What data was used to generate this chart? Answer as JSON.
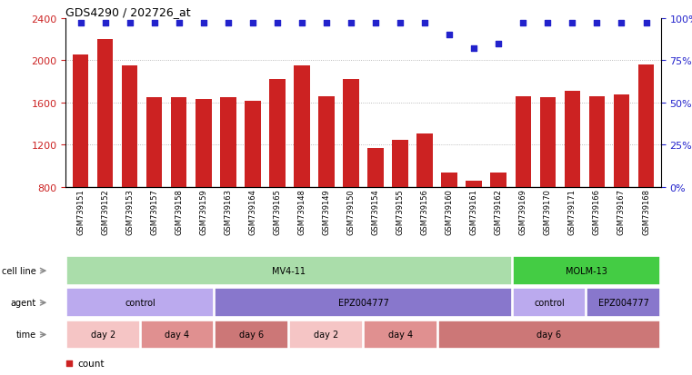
{
  "title": "GDS4290 / 202726_at",
  "samples": [
    "GSM739151",
    "GSM739152",
    "GSM739153",
    "GSM739157",
    "GSM739158",
    "GSM739159",
    "GSM739163",
    "GSM739164",
    "GSM739165",
    "GSM739148",
    "GSM739149",
    "GSM739150",
    "GSM739154",
    "GSM739155",
    "GSM739156",
    "GSM739160",
    "GSM739161",
    "GSM739162",
    "GSM739169",
    "GSM739170",
    "GSM739171",
    "GSM739166",
    "GSM739167",
    "GSM739168"
  ],
  "counts": [
    2050,
    2200,
    1950,
    1650,
    1650,
    1630,
    1650,
    1620,
    1820,
    1950,
    1660,
    1820,
    1170,
    1250,
    1310,
    940,
    860,
    940,
    1660,
    1650,
    1710,
    1660,
    1680,
    1960
  ],
  "percentile": [
    97,
    97,
    97,
    97,
    97,
    97,
    97,
    97,
    97,
    97,
    97,
    97,
    97,
    97,
    97,
    90,
    82,
    85,
    97,
    97,
    97,
    97,
    97,
    97
  ],
  "ylim_left": [
    800,
    2400
  ],
  "ylim_right": [
    0,
    100
  ],
  "yticks_left": [
    800,
    1200,
    1600,
    2000,
    2400
  ],
  "yticks_right": [
    0,
    25,
    50,
    75,
    100
  ],
  "bar_color": "#cc2222",
  "dot_color": "#2222cc",
  "grid_color": "#aaaaaa",
  "cell_lines": [
    {
      "label": "MV4-11",
      "start": 0,
      "end": 18,
      "color": "#aaddaa"
    },
    {
      "label": "MOLM-13",
      "start": 18,
      "end": 24,
      "color": "#44cc44"
    }
  ],
  "agents": [
    {
      "label": "control",
      "start": 0,
      "end": 6,
      "color": "#bbaaee"
    },
    {
      "label": "EPZ004777",
      "start": 6,
      "end": 18,
      "color": "#8877cc"
    },
    {
      "label": "control",
      "start": 18,
      "end": 21,
      "color": "#bbaaee"
    },
    {
      "label": "EPZ004777",
      "start": 21,
      "end": 24,
      "color": "#8877cc"
    }
  ],
  "times": [
    {
      "label": "day 2",
      "start": 0,
      "end": 3,
      "color": "#f5c5c5"
    },
    {
      "label": "day 4",
      "start": 3,
      "end": 6,
      "color": "#e09090"
    },
    {
      "label": "day 6",
      "start": 6,
      "end": 9,
      "color": "#cc7777"
    },
    {
      "label": "day 2",
      "start": 9,
      "end": 12,
      "color": "#f5c5c5"
    },
    {
      "label": "day 4",
      "start": 12,
      "end": 15,
      "color": "#e09090"
    },
    {
      "label": "day 6",
      "start": 15,
      "end": 24,
      "color": "#cc7777"
    }
  ],
  "row_labels": [
    "cell line",
    "agent",
    "time"
  ],
  "bg_color": "#ffffff",
  "axis_color_left": "#cc2222",
  "axis_color_right": "#2222cc"
}
